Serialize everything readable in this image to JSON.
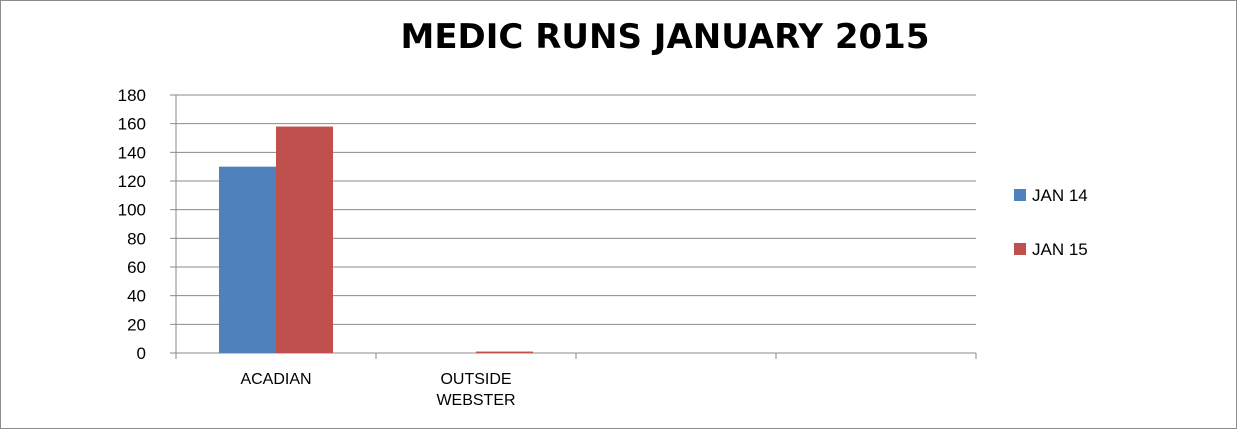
{
  "chart_data": {
    "type": "bar",
    "title": "MEDIC RUNS JANUARY 2015",
    "xlabel": "",
    "ylabel": "",
    "categories": [
      "ACADIAN",
      "OUTSIDE WEBSTER",
      "",
      ""
    ],
    "category_lines": [
      [
        "ACADIAN"
      ],
      [
        "OUTSIDE",
        "WEBSTER"
      ],
      [
        ""
      ],
      [
        ""
      ]
    ],
    "series": [
      {
        "name": "JAN 14",
        "color": "#4F81BD",
        "values": [
          130,
          0,
          0,
          0
        ]
      },
      {
        "name": "JAN 15",
        "color": "#C0504D",
        "values": [
          158,
          1,
          0,
          0
        ]
      }
    ],
    "ylim": [
      0,
      180
    ],
    "yticks": [
      0,
      20,
      40,
      60,
      80,
      100,
      120,
      140,
      160,
      180
    ],
    "grid": true,
    "legend_position": "right"
  }
}
